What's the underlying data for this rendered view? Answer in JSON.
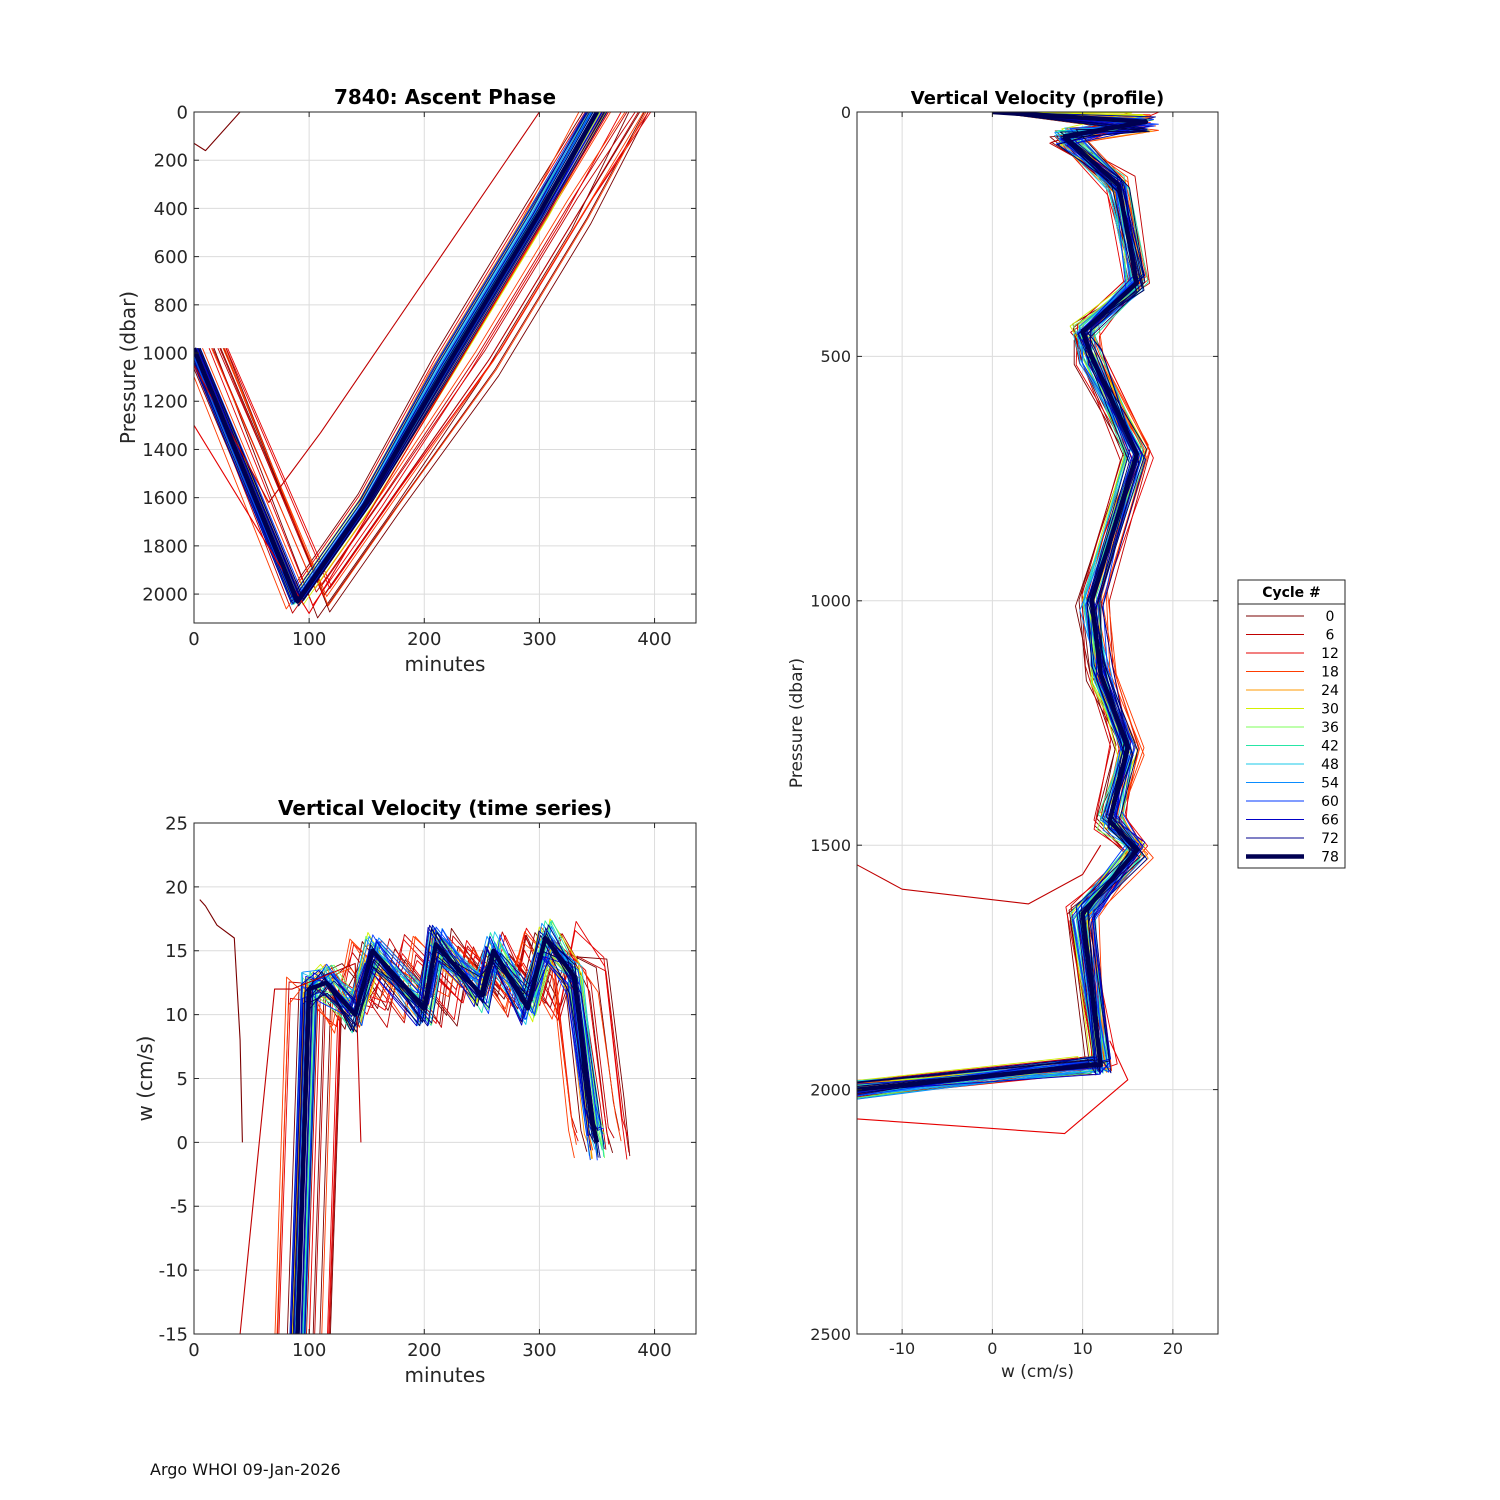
{
  "footer": "Argo WHOI 09-Jan-2026",
  "chart_data": [
    {
      "type": "line",
      "title": "7840: Ascent Phase",
      "xlabel": "minutes",
      "ylabel": "Pressure (dbar)",
      "xlim": [
        0,
        436
      ],
      "ylim": [
        2120,
        0
      ],
      "xticks": [
        0,
        100,
        200,
        300,
        400
      ],
      "yticks": [
        0,
        200,
        400,
        600,
        800,
        1000,
        1200,
        1400,
        1600,
        1800,
        2000
      ],
      "grid": true,
      "series_note": "one trace per cycle 0-78, colored by cycle number",
      "highlight": {
        "name": "78",
        "x": [
          0,
          90,
          150,
          220,
          300,
          350
        ],
        "y": [
          980,
          2030,
          1620,
          1050,
          420,
          0
        ]
      },
      "representative": [
        {
          "name": "0",
          "x": [
            0,
            10,
            40,
            140
          ],
          "y": [
            130,
            160,
            0,
            0
          ]
        },
        {
          "name": "6",
          "x": [
            0,
            65,
            110,
            300,
            330
          ],
          "y": [
            1050,
            1620,
            1330,
            0,
            0
          ]
        },
        {
          "name": "12",
          "x": [
            0,
            100,
            160,
            360,
            390
          ],
          "y": [
            1300,
            2080,
            1600,
            0,
            0
          ]
        }
      ]
    },
    {
      "type": "line",
      "title": "Vertical Velocity (time series)",
      "xlabel": "minutes",
      "ylabel": "w (cm/s)",
      "xlim": [
        0,
        436
      ],
      "ylim": [
        -15,
        25
      ],
      "xticks": [
        0,
        100,
        200,
        300,
        400
      ],
      "yticks": [
        -15,
        -10,
        -5,
        0,
        5,
        10,
        15,
        20,
        25
      ],
      "grid": true,
      "highlight": {
        "name": "78",
        "x": [
          90,
          100,
          115,
          140,
          155,
          200,
          210,
          250,
          260,
          290,
          305,
          330,
          345,
          350
        ],
        "y": [
          -15,
          12,
          12.5,
          10,
          15,
          10.5,
          15.5,
          11.5,
          15,
          10.5,
          16,
          13,
          2,
          0
        ]
      },
      "representative": [
        {
          "name": "0",
          "x": [
            5,
            10,
            20,
            35,
            40,
            42
          ],
          "y": [
            19,
            18.5,
            17,
            16,
            8,
            0
          ]
        },
        {
          "name": "6",
          "x": [
            40,
            70,
            85,
            140,
            145
          ],
          "y": [
            -15,
            12,
            12,
            14,
            0
          ]
        }
      ]
    },
    {
      "type": "line",
      "title": "Vertical Velocity (profile)",
      "xlabel": "w (cm/s)",
      "ylabel": "Pressure (dbar)",
      "xlim": [
        -15,
        25
      ],
      "ylim": [
        2500,
        0
      ],
      "xticks": [
        -10,
        0,
        10,
        20
      ],
      "yticks": [
        0,
        500,
        1000,
        1500,
        2000,
        2500
      ],
      "grid": true,
      "highlight": {
        "name": "78",
        "x": [
          0,
          17,
          8,
          14,
          16,
          10,
          11,
          16,
          11,
          12,
          15,
          13,
          16,
          10,
          12,
          11,
          -15
        ],
        "y": [
          0,
          20,
          50,
          150,
          350,
          450,
          500,
          700,
          1000,
          1150,
          1300,
          1450,
          1510,
          1640,
          1950,
          1950,
          2000
        ]
      },
      "representative": [
        {
          "name": "6",
          "x": [
            -15,
            -10,
            4,
            10,
            12
          ],
          "y": [
            1540,
            1590,
            1620,
            1560,
            1500
          ]
        },
        {
          "name": "12",
          "x": [
            -15,
            8,
            15,
            13
          ],
          "y": [
            2060,
            2090,
            1980,
            1900
          ]
        }
      ],
      "legend": {
        "title": "Cycle #",
        "placement": "right",
        "entries": [
          {
            "label": "0",
            "color": "#7a0000"
          },
          {
            "label": "6",
            "color": "#c00000"
          },
          {
            "label": "12",
            "color": "#e60000"
          },
          {
            "label": "18",
            "color": "#ff3c00"
          },
          {
            "label": "24",
            "color": "#ff9a00"
          },
          {
            "label": "30",
            "color": "#d4f000"
          },
          {
            "label": "36",
            "color": "#7cff5a"
          },
          {
            "label": "42",
            "color": "#26e6a6"
          },
          {
            "label": "48",
            "color": "#18c8e8"
          },
          {
            "label": "54",
            "color": "#0a8cff"
          },
          {
            "label": "60",
            "color": "#0038ff"
          },
          {
            "label": "66",
            "color": "#0000c8"
          },
          {
            "label": "72",
            "color": "#00008c"
          },
          {
            "label": "78",
            "color": "#000052"
          }
        ]
      }
    }
  ]
}
